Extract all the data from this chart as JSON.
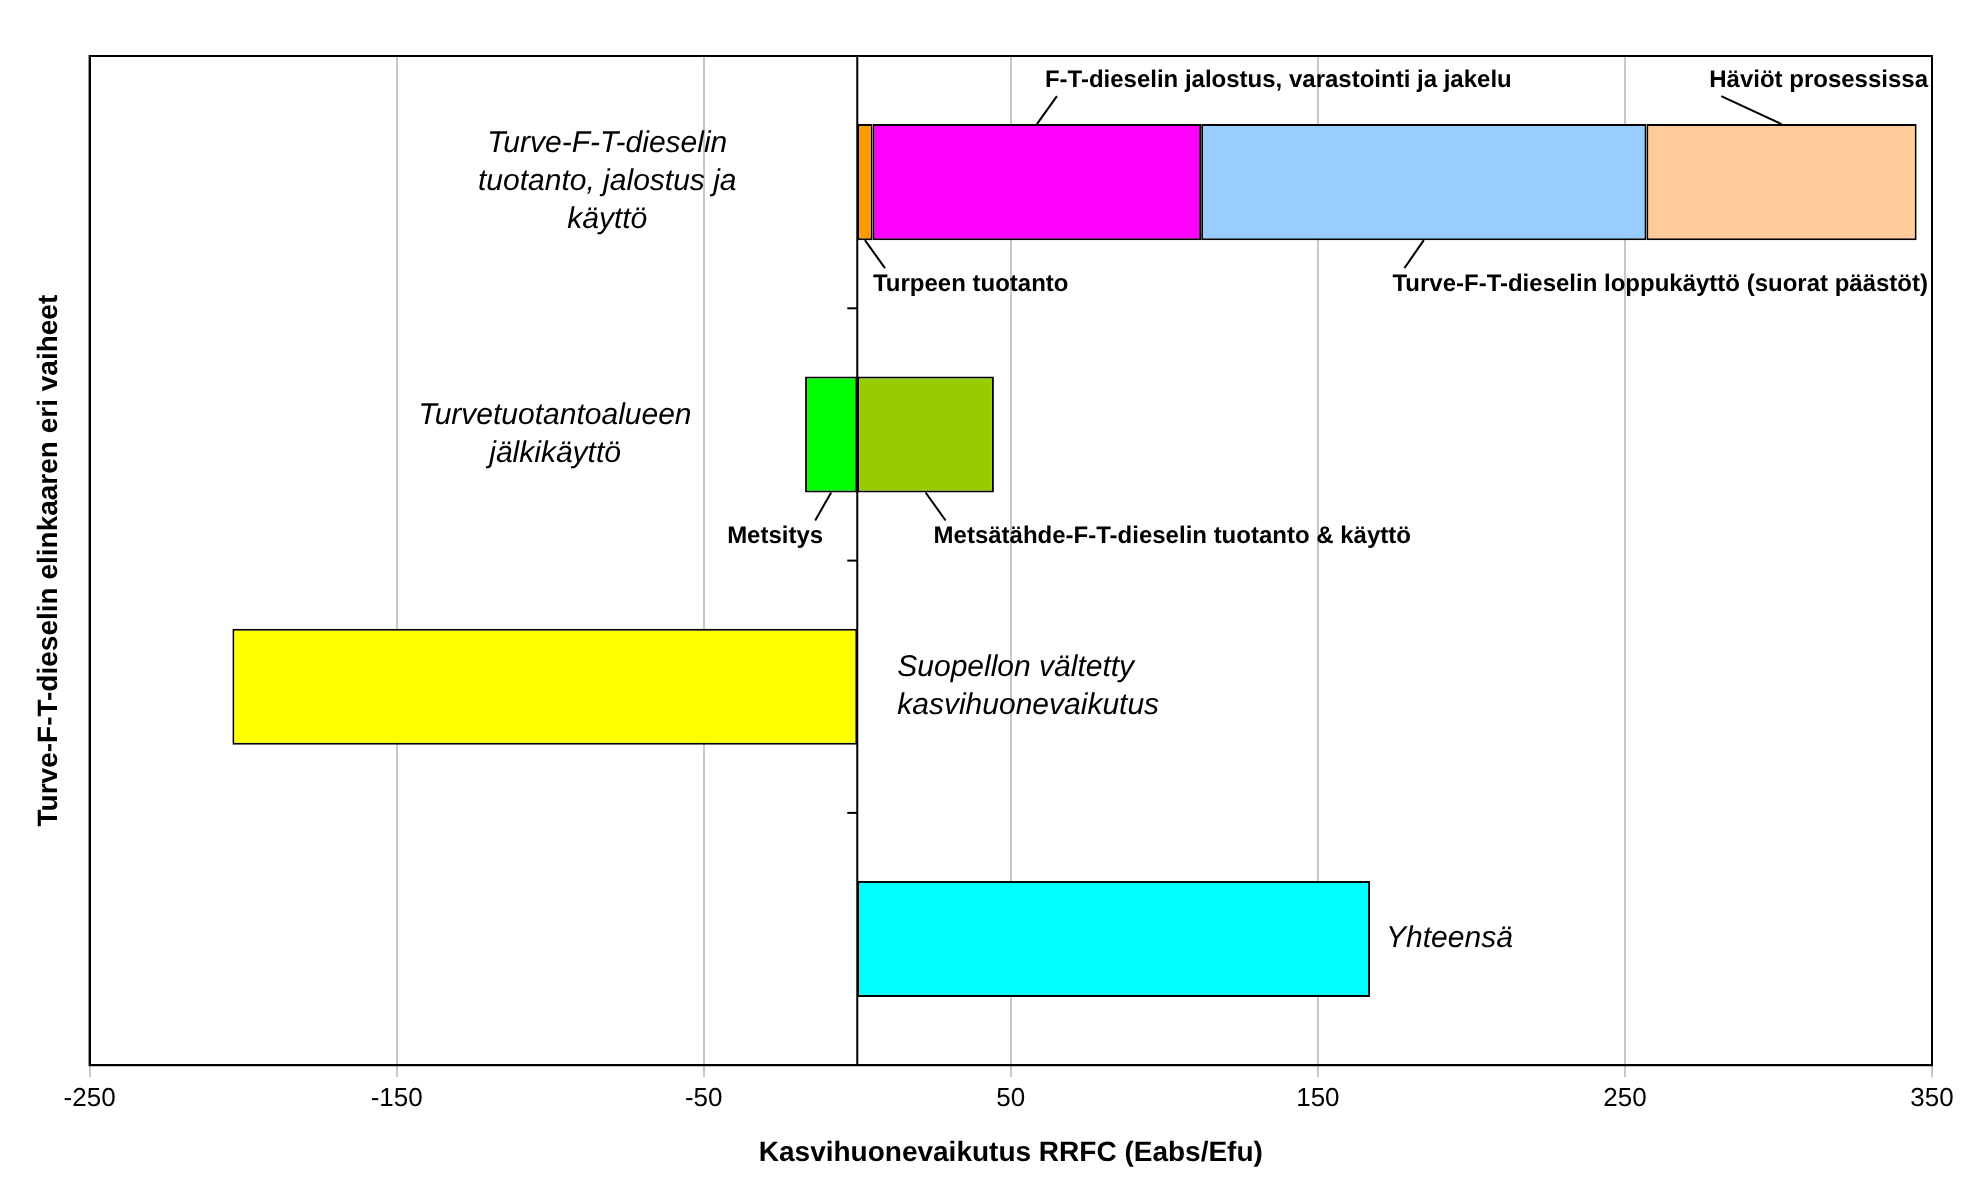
{
  "chart_data": {
    "type": "bar",
    "orientation": "horizontal",
    "stacked": true,
    "xlabel": "Kasvihuonevaikutus RRFC (Eabs/Efu)",
    "ylabel": "Turve-F-T-dieselin elinkaaren eri vaiheet",
    "categories": [
      "Turve-F-T-dieselin tuotanto, jalostus ja käyttö",
      "Turvetuotantoalueen jälkikäyttö",
      "Suopellon vältetty kasvihuonevaikutus",
      "Yhteensä"
    ],
    "series": [
      {
        "name": "Turpeen tuotanto",
        "color": "#ff9900",
        "values": [
          5,
          null,
          null,
          null
        ]
      },
      {
        "name": "F-T-dieselin jalostus, varastointi ja jakelu",
        "color": "#ff00ff",
        "values": [
          107,
          null,
          null,
          null
        ]
      },
      {
        "name": "Turve-F-T-dieselin loppukäyttö (suorat päästöt)",
        "color": "#99ccff",
        "values": [
          145,
          null,
          null,
          null
        ]
      },
      {
        "name": "Häviöt prosessissa",
        "color": "#ffcc99",
        "values": [
          88,
          null,
          null,
          null
        ]
      },
      {
        "name": "Metsitys",
        "color": "#00ff00",
        "values": [
          null,
          -17,
          null,
          null
        ]
      },
      {
        "name": "Metsätähde-F-T-dieselin tuotanto & käyttö",
        "color": "#99cc00",
        "values": [
          null,
          44.5,
          null,
          null
        ]
      },
      {
        "color": "#ffff00",
        "values": [
          null,
          null,
          -203.5,
          null
        ]
      },
      {
        "color": "#00ffff",
        "values": [
          null,
          null,
          null,
          167
        ]
      }
    ],
    "xlim": [
      -250,
      350
    ],
    "xticks": [
      -250,
      -150,
      -50,
      50,
      150,
      250,
      350
    ],
    "grid": "x",
    "legend": false
  }
}
